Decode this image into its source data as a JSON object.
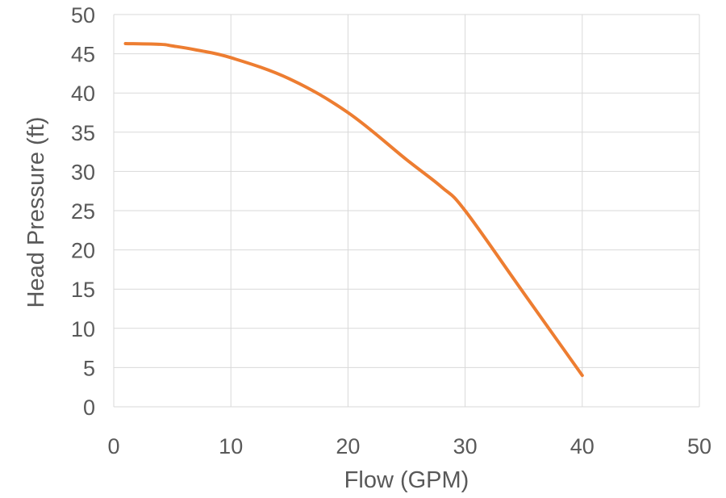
{
  "chart_data": {
    "type": "line",
    "title": "",
    "xlabel": "Flow (GPM)",
    "ylabel": "Head Pressure (ft)",
    "xlim": [
      0,
      50
    ],
    "ylim": [
      0,
      50
    ],
    "x_ticks": [
      0,
      10,
      20,
      30,
      40,
      50
    ],
    "y_ticks": [
      0,
      5,
      10,
      15,
      20,
      25,
      30,
      35,
      40,
      45,
      50
    ],
    "grid": true,
    "legend": "none",
    "series": [
      {
        "color": "#ED7D31",
        "x": [
          1,
          4,
          5,
          7,
          10,
          15,
          20,
          25,
          28,
          30,
          35,
          40
        ],
        "y": [
          46.3,
          46.2,
          46.0,
          45.5,
          44.5,
          41.8,
          37.5,
          31.5,
          28.0,
          25.0,
          14.5,
          4.0
        ]
      }
    ]
  }
}
